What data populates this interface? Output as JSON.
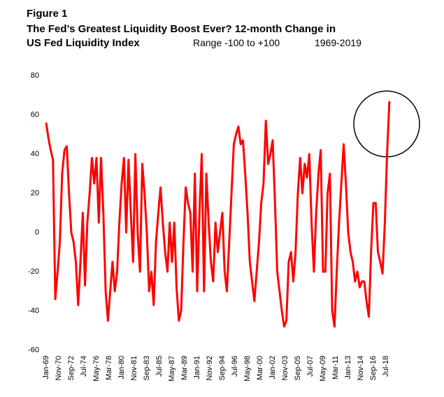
{
  "chart_data": {
    "type": "line",
    "title": "Figure 1",
    "subtitle": "The Fed’s Greatest Liquidity Boost Ever? 12-month Change in",
    "y_label": "US Fed Liquidity Index",
    "annotations": [
      "Range -100 to +100",
      "1969-2019"
    ],
    "ylim": [
      -60,
      80
    ],
    "yticks": [
      -60,
      -40,
      -20,
      0,
      20,
      40,
      60,
      80
    ],
    "xticks": [
      "Jan-69",
      "Nov-70",
      "Sep-72",
      "Jul-74",
      "May-76",
      "Mar-78",
      "Jan-80",
      "Nov-81",
      "Sep-83",
      "Jul-85",
      "May-87",
      "Mar-89",
      "Jan-91",
      "Nov-92",
      "Sep-94",
      "Jul-96",
      "May-98",
      "Mar-00",
      "Jan-02",
      "Nov-03",
      "Sep-05",
      "Jul-07",
      "May-09",
      "Mar-11",
      "Jan-13",
      "Nov-14",
      "Sep-16",
      "Jul-18"
    ],
    "x": [
      "Jan-69",
      "May-69",
      "Sep-69",
      "Jan-70",
      "May-70",
      "Sep-70",
      "Jan-71",
      "May-71",
      "Sep-71",
      "Jan-72",
      "May-72",
      "Sep-72",
      "Jan-73",
      "May-73",
      "Sep-73",
      "Jan-74",
      "May-74",
      "Sep-74",
      "Jan-75",
      "May-75",
      "Sep-75",
      "Jan-76",
      "May-76",
      "Sep-76",
      "Jan-77",
      "May-77",
      "Sep-77",
      "Jan-78",
      "May-78",
      "Sep-78",
      "Jan-79",
      "May-79",
      "Sep-79",
      "Jan-80",
      "May-80",
      "Sep-80",
      "Jan-81",
      "May-81",
      "Sep-81",
      "Jan-82",
      "May-82",
      "Sep-82",
      "Jan-83",
      "May-83",
      "Sep-83",
      "Jan-84",
      "May-84",
      "Sep-84",
      "Jan-85",
      "May-85",
      "Sep-85",
      "Jan-86",
      "May-86",
      "Sep-86",
      "Jan-87",
      "May-87",
      "Sep-87",
      "Jan-88",
      "May-88",
      "Sep-88",
      "Jan-89",
      "May-89",
      "Sep-89",
      "Jan-90",
      "May-90",
      "Sep-90",
      "Jan-91",
      "May-91",
      "Sep-91",
      "Jan-92",
      "May-92",
      "Sep-92",
      "Jan-93",
      "May-93",
      "Sep-93",
      "Jan-94",
      "May-94",
      "Sep-94",
      "Jan-95",
      "May-95",
      "Sep-95",
      "Jan-96",
      "May-96",
      "Sep-96",
      "Jan-97",
      "May-97",
      "Sep-97",
      "Jan-98",
      "May-98",
      "Sep-98",
      "Jan-99",
      "May-99",
      "Sep-99",
      "Jan-00",
      "May-00",
      "Sep-00",
      "Jan-01",
      "May-01",
      "Sep-01",
      "Jan-02",
      "May-02",
      "Sep-02",
      "Jan-03",
      "May-03",
      "Sep-03",
      "Jan-04",
      "May-04",
      "Sep-04",
      "Jan-05",
      "May-05",
      "Sep-05",
      "Jan-06",
      "May-06",
      "Sep-06",
      "Jan-07",
      "May-07",
      "Sep-07",
      "Jan-08",
      "May-08",
      "Sep-08",
      "Jan-09",
      "May-09",
      "Sep-09",
      "Jan-10",
      "May-10",
      "Sep-10",
      "Jan-11",
      "May-11",
      "Sep-11",
      "Jan-12",
      "May-12",
      "Sep-12",
      "Jan-13",
      "May-13",
      "Sep-13",
      "Jan-14",
      "May-14",
      "Sep-14",
      "Jan-15",
      "May-15",
      "Sep-15",
      "Jan-16",
      "May-16",
      "Sep-16",
      "Jan-17",
      "May-17",
      "Sep-17",
      "Jan-18",
      "May-18",
      "Sep-18",
      "Jan-19"
    ],
    "series": [
      {
        "color": "#ff0000",
        "values": [
          56,
          48,
          42,
          37,
          -34,
          -20,
          -5,
          30,
          42,
          44,
          20,
          0,
          -5,
          -15,
          -37,
          -15,
          10,
          -27,
          5,
          20,
          38,
          25,
          38,
          5,
          38,
          10,
          -30,
          -45,
          -30,
          -15,
          -30,
          -20,
          5,
          25,
          38,
          0,
          37,
          10,
          -15,
          40,
          0,
          -20,
          35,
          20,
          0,
          -30,
          -20,
          -37,
          -5,
          10,
          23,
          5,
          -10,
          -20,
          5,
          -15,
          5,
          -28,
          -45,
          -40,
          -5,
          23,
          15,
          10,
          -20,
          30,
          -30,
          10,
          40,
          -30,
          30,
          5,
          -15,
          -25,
          5,
          -10,
          0,
          10,
          -20,
          -30,
          -5,
          20,
          45,
          50,
          54,
          45,
          47,
          30,
          10,
          -15,
          -25,
          -35,
          -20,
          -5,
          15,
          25,
          57,
          35,
          40,
          47,
          15,
          -20,
          -30,
          -40,
          -48,
          -45,
          -15,
          -10,
          -25,
          -10,
          20,
          38,
          20,
          35,
          28,
          40,
          5,
          -20,
          10,
          30,
          42,
          -20,
          -20,
          20,
          30,
          -40,
          -48,
          -20,
          5,
          25,
          45,
          25,
          0,
          -10,
          -15,
          -25,
          -20,
          -28,
          -25,
          -25,
          -35,
          -43,
          -10,
          15,
          15,
          -10,
          -15,
          -21,
          5,
          40,
          67
        ]
      }
    ]
  }
}
